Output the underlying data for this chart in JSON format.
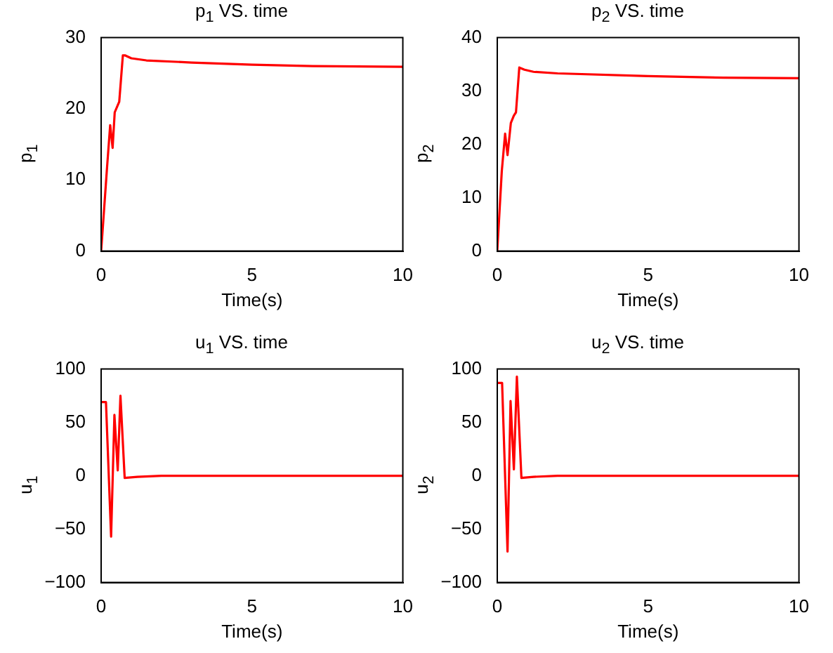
{
  "chart_data": [
    {
      "type": "line",
      "title": "p$_{1}$ VS. time",
      "xlabel": "Time(s)",
      "ylabel": "p$_{1}$",
      "xlim": [
        0,
        10
      ],
      "xticks": [
        0,
        5,
        10
      ],
      "ylim": [
        0,
        30
      ],
      "yticks": [
        0,
        10,
        20,
        30
      ],
      "grid": false,
      "legend": false,
      "series": [
        {
          "color": "#ff0000",
          "x": [
            0,
            0.1,
            0.2,
            0.3,
            0.38,
            0.45,
            0.55,
            0.6,
            0.72,
            0.8,
            1.0,
            1.5,
            3,
            5,
            7,
            10
          ],
          "values": [
            0,
            6,
            12,
            17.7,
            14.5,
            19.5,
            20.5,
            21,
            27.5,
            27.5,
            27.1,
            26.8,
            26.5,
            26.2,
            26.0,
            25.9
          ]
        }
      ]
    },
    {
      "type": "line",
      "title": "p$_{2}$ VS. time",
      "xlabel": "Time(s)",
      "ylabel": "p$_{2}$",
      "xlim": [
        0,
        10
      ],
      "xticks": [
        0,
        5,
        10
      ],
      "ylim": [
        0,
        40
      ],
      "yticks": [
        0,
        10,
        20,
        30,
        40
      ],
      "grid": false,
      "legend": false,
      "series": [
        {
          "color": "#ff0000",
          "x": [
            0,
            0.15,
            0.26,
            0.34,
            0.45,
            0.55,
            0.62,
            0.73,
            0.9,
            1.2,
            2,
            5,
            7.5,
            10
          ],
          "values": [
            0,
            15,
            22,
            18,
            24,
            25.4,
            26,
            34.4,
            34,
            33.6,
            33.3,
            32.8,
            32.5,
            32.4
          ]
        }
      ]
    },
    {
      "type": "line",
      "title": "u$_{1}$ VS. time",
      "xlabel": "Time(s)",
      "ylabel": "u$_{1}$",
      "xlim": [
        0,
        10
      ],
      "xticks": [
        0,
        5,
        10
      ],
      "ylim": [
        -100,
        100
      ],
      "yticks": [
        -100,
        -50,
        0,
        50,
        100
      ],
      "grid": false,
      "legend": false,
      "series": [
        {
          "color": "#ff0000",
          "x": [
            0,
            0.16,
            0.33,
            0.44,
            0.55,
            0.64,
            0.78,
            1.2,
            2,
            10
          ],
          "values": [
            69,
            69,
            -57,
            57,
            5,
            75,
            -2,
            -1,
            0,
            0
          ]
        }
      ]
    },
    {
      "type": "line",
      "title": "u$_{2}$ VS. time",
      "xlabel": "Time(s)",
      "ylabel": "u$_{2}$",
      "xlim": [
        0,
        10
      ],
      "xticks": [
        0,
        5,
        10
      ],
      "ylim": [
        -100,
        100
      ],
      "yticks": [
        -100,
        -50,
        0,
        50,
        100
      ],
      "grid": false,
      "legend": false,
      "series": [
        {
          "color": "#ff0000",
          "x": [
            0,
            0.16,
            0.34,
            0.44,
            0.55,
            0.65,
            0.8,
            1.2,
            2,
            10
          ],
          "values": [
            87,
            87,
            -71,
            70,
            6,
            93,
            -2,
            -1,
            0,
            0
          ]
        }
      ]
    }
  ]
}
